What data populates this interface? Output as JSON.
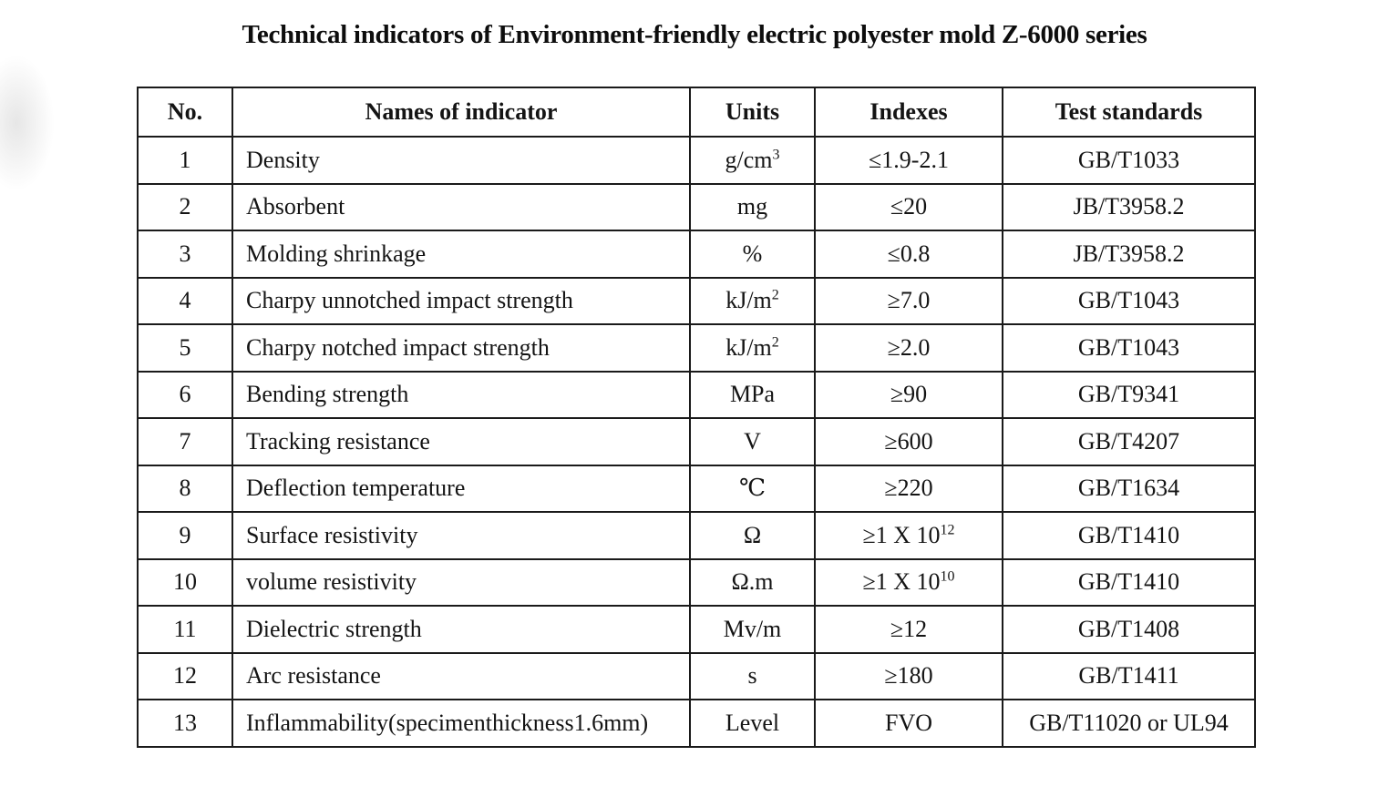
{
  "title": "Technical indicators of Environment-friendly electric polyester mold Z-6000 series",
  "table": {
    "headers": {
      "no": "No.",
      "name": "Names of indicator",
      "units": "Units",
      "indexes": "Indexes",
      "standards": "Test standards"
    },
    "rows": [
      {
        "no": "1",
        "name": "Density",
        "unit": "g/cm",
        "unit_sup": "3",
        "index": "≤1.9-2.1",
        "index_sup": "",
        "standard": "GB/T1033"
      },
      {
        "no": "2",
        "name": "Absorbent",
        "unit": "mg",
        "unit_sup": "",
        "index": "≤20",
        "index_sup": "",
        "standard": "JB/T3958.2"
      },
      {
        "no": "3",
        "name": "Molding shrinkage",
        "unit": "%",
        "unit_sup": "",
        "index": "≤0.8",
        "index_sup": "",
        "standard": "JB/T3958.2"
      },
      {
        "no": "4",
        "name": "Charpy unnotched impact strength",
        "unit": "kJ/m",
        "unit_sup": "2",
        "index": "≥7.0",
        "index_sup": "",
        "standard": "GB/T1043"
      },
      {
        "no": "5",
        "name": "Charpy notched impact strength",
        "unit": "kJ/m",
        "unit_sup": "2",
        "index": "≥2.0",
        "index_sup": "",
        "standard": "GB/T1043"
      },
      {
        "no": "6",
        "name": "Bending strength",
        "unit": "MPa",
        "unit_sup": "",
        "index": "≥90",
        "index_sup": "",
        "standard": "GB/T9341"
      },
      {
        "no": "7",
        "name": "Tracking resistance",
        "unit": "V",
        "unit_sup": "",
        "index": "≥600",
        "index_sup": "",
        "standard": "GB/T4207"
      },
      {
        "no": "8",
        "name": "Deflection temperature",
        "unit": "℃",
        "unit_sup": "",
        "index": "≥220",
        "index_sup": "",
        "standard": "GB/T1634"
      },
      {
        "no": "9",
        "name": "Surface resistivity",
        "unit": "Ω",
        "unit_sup": "",
        "index": "≥1 X 10",
        "index_sup": "12",
        "standard": "GB/T1410"
      },
      {
        "no": "10",
        "name": "volume resistivity",
        "unit": "Ω.m",
        "unit_sup": "",
        "index": "≥1 X 10",
        "index_sup": "10",
        "standard": "GB/T1410"
      },
      {
        "no": "11",
        "name": "Dielectric strength",
        "unit": "Mv/m",
        "unit_sup": "",
        "index": "≥12",
        "index_sup": "",
        "standard": "GB/T1408"
      },
      {
        "no": "12",
        "name": "Arc resistance",
        "unit": "s",
        "unit_sup": "",
        "index": "≥180",
        "index_sup": "",
        "standard": "GB/T1411"
      },
      {
        "no": "13",
        "name": "Inflammability(specimenthickness1.6mm)",
        "unit": "Level",
        "unit_sup": "",
        "index": "FVO",
        "index_sup": "",
        "standard": "GB/T11020 or UL94"
      }
    ]
  }
}
